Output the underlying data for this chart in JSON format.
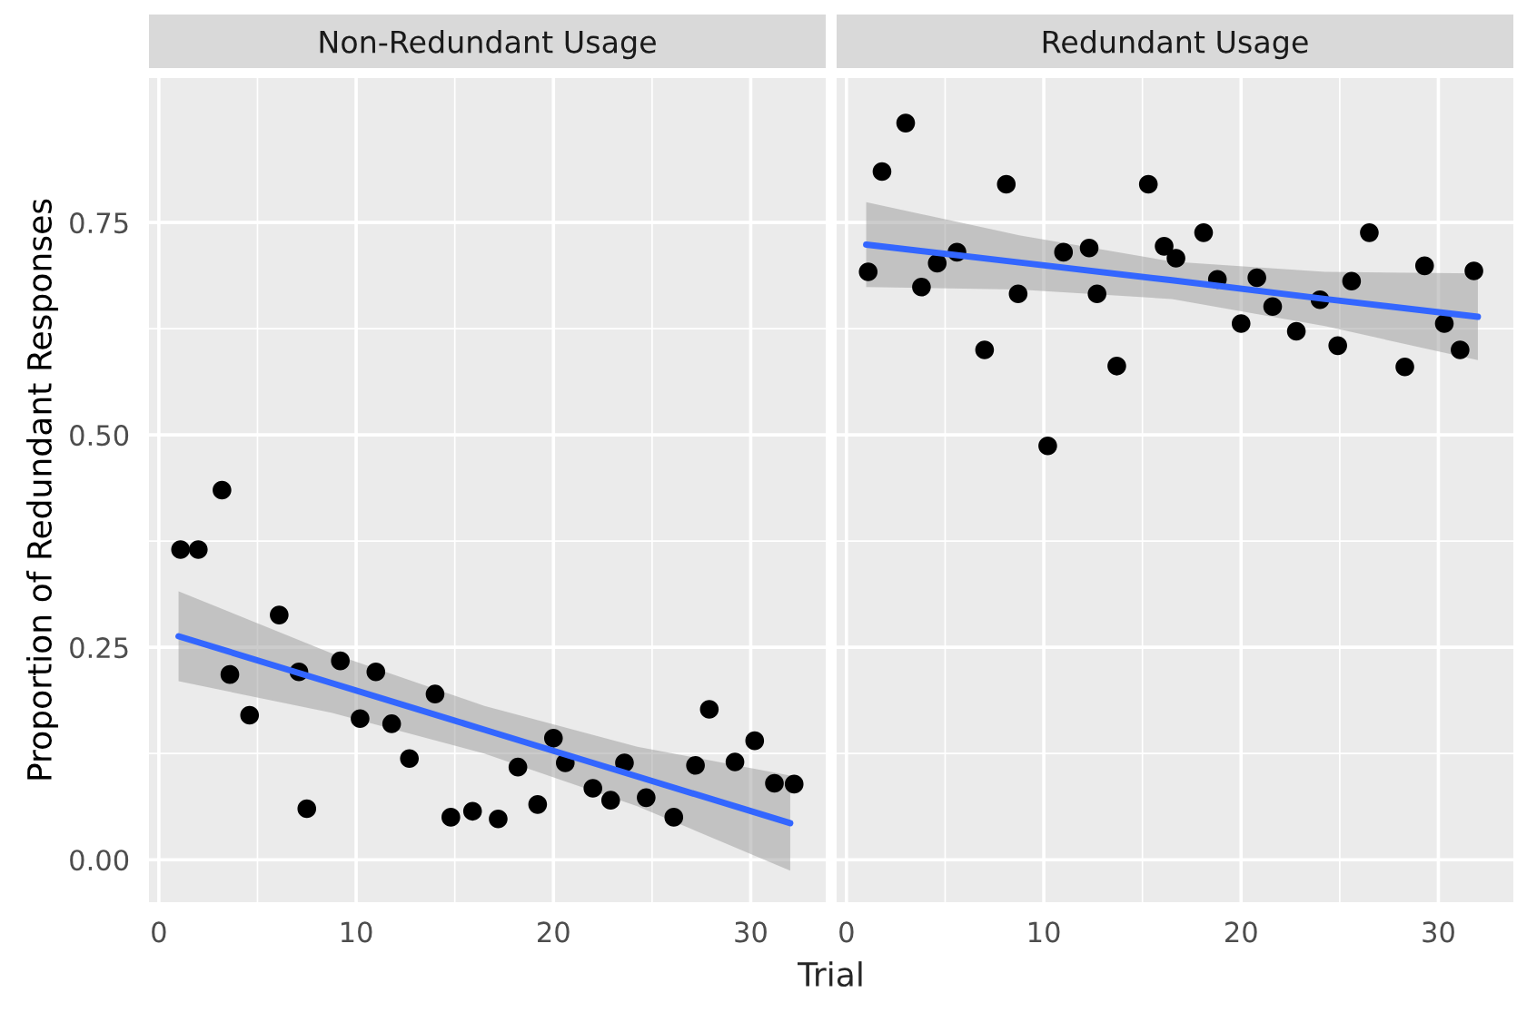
{
  "chart_data": [
    {
      "type": "scatter",
      "title": "Non-Redundant Usage",
      "xlabel": "Trial",
      "ylabel": "Proportion of Redundant Responses",
      "xlim": [
        -0.5,
        33.8
      ],
      "ylim": [
        -0.05,
        0.92
      ],
      "xticks": [
        0,
        10,
        20,
        30
      ],
      "yticks": [
        {
          "value": 0,
          "label": "0.00"
        },
        {
          "value": 0.25,
          "label": "0.25"
        },
        {
          "value": 0.5,
          "label": "0.50"
        },
        {
          "value": 0.75,
          "label": "0.75"
        }
      ],
      "grid": true,
      "series": [
        {
          "marker": "circle",
          "color": "#000000",
          "x": [
            1.1,
            2.0,
            3.2,
            3.6,
            4.6,
            6.1,
            7.1,
            7.5,
            9.2,
            10.2,
            11.0,
            11.8,
            12.7,
            14.0,
            14.8,
            15.9,
            17.2,
            18.2,
            19.2,
            20.0,
            20.6,
            22.0,
            22.9,
            23.6,
            24.7,
            26.1,
            27.2,
            27.9,
            29.2,
            30.2,
            31.2,
            32.2
          ],
          "values": [
            0.365,
            0.365,
            0.435,
            0.218,
            0.17,
            0.288,
            0.221,
            0.06,
            0.234,
            0.166,
            0.221,
            0.16,
            0.119,
            0.195,
            0.05,
            0.057,
            0.048,
            0.109,
            0.065,
            0.143,
            0.114,
            0.084,
            0.07,
            0.114,
            0.073,
            0.05,
            0.111,
            0.177,
            0.115,
            0.14,
            0.09,
            0.089
          ]
        },
        {
          "type": "line",
          "color": "#3366ff",
          "x": [
            1,
            8.75,
            16.5,
            24.25,
            32
          ],
          "values": [
            0.263,
            0.208,
            0.153,
            0.098,
            0.043
          ],
          "lower": [
            0.21,
            0.173,
            0.125,
            0.063,
            -0.013
          ],
          "upper": [
            0.316,
            0.243,
            0.181,
            0.133,
            0.099
          ]
        }
      ]
    },
    {
      "type": "scatter",
      "title": "Redundant Usage",
      "xlim": [
        -0.5,
        33.8
      ],
      "ylim": [
        -0.05,
        0.92
      ],
      "xticks": [
        0,
        10,
        20,
        30
      ],
      "yticks": [
        0,
        0.25,
        0.5,
        0.75
      ],
      "tick_labels": "x",
      "grid": true,
      "series": [
        {
          "marker": "circle",
          "color": "#000000",
          "x": [
            1.1,
            1.8,
            3.0,
            3.8,
            4.6,
            5.6,
            7.0,
            8.1,
            8.7,
            10.2,
            11.0,
            12.3,
            12.7,
            13.7,
            15.3,
            16.1,
            16.7,
            18.1,
            18.8,
            20.0,
            20.8,
            21.6,
            22.8,
            24.0,
            24.9,
            25.6,
            26.5,
            28.3,
            29.3,
            30.3,
            31.1,
            31.8
          ],
          "values": [
            0.692,
            0.81,
            0.867,
            0.674,
            0.702,
            0.715,
            0.6,
            0.795,
            0.666,
            0.487,
            0.715,
            0.72,
            0.666,
            0.581,
            0.795,
            0.722,
            0.708,
            0.738,
            0.683,
            0.631,
            0.685,
            0.651,
            0.622,
            0.659,
            0.605,
            0.681,
            0.738,
            0.58,
            0.699,
            0.631,
            0.6,
            0.693
          ]
        },
        {
          "type": "line",
          "color": "#3366ff",
          "x": [
            1,
            8.75,
            16.5,
            24.25,
            32
          ],
          "values": [
            0.724,
            0.703,
            0.682,
            0.66,
            0.639
          ],
          "lower": [
            0.674,
            0.671,
            0.66,
            0.628,
            0.588
          ],
          "upper": [
            0.774,
            0.735,
            0.704,
            0.692,
            0.69
          ]
        }
      ]
    }
  ]
}
